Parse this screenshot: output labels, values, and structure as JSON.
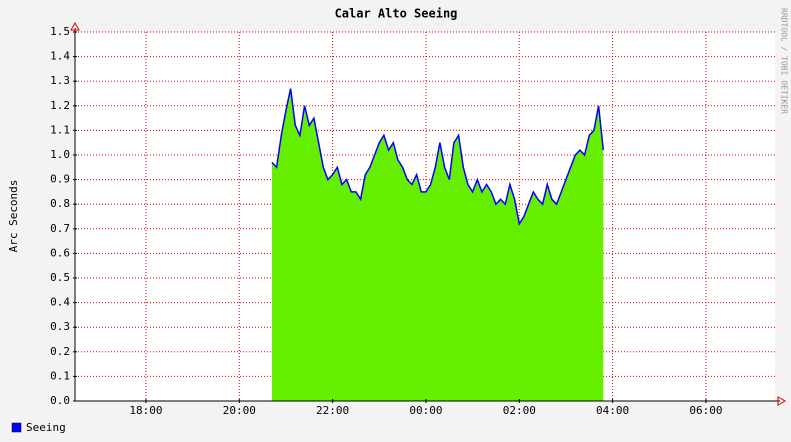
{
  "chart_data": {
    "type": "area",
    "title": "Calar Alto Seeing",
    "y_label": "Arc Seconds",
    "watermark": "RRDTOOL / TOBI OETIKER",
    "series": [
      {
        "name": "Seeing",
        "color": "#0000ff",
        "fill": "#66ee00",
        "x": [
          20.7,
          20.8,
          20.9,
          21.0,
          21.1,
          21.2,
          21.3,
          21.4,
          21.5,
          21.6,
          21.7,
          21.8,
          21.9,
          22.0,
          22.1,
          22.2,
          22.3,
          22.4,
          22.5,
          22.6,
          22.7,
          22.8,
          22.9,
          23.0,
          23.1,
          23.2,
          23.3,
          23.4,
          23.5,
          23.6,
          23.7,
          23.8,
          23.9,
          24.0,
          24.1,
          24.2,
          24.3,
          24.4,
          24.5,
          24.6,
          24.7,
          24.8,
          24.9,
          25.0,
          25.1,
          25.2,
          25.3,
          25.4,
          25.5,
          25.6,
          25.7,
          25.8,
          25.9,
          26.0,
          26.1,
          26.2,
          26.3,
          26.4,
          26.5,
          26.6,
          26.7,
          26.8,
          26.9,
          27.0,
          27.1,
          27.2,
          27.3,
          27.4,
          27.5,
          27.6,
          27.7,
          27.8
        ],
        "values": [
          0.97,
          0.95,
          1.08,
          1.18,
          1.27,
          1.12,
          1.08,
          1.2,
          1.12,
          1.15,
          1.05,
          0.95,
          0.9,
          0.92,
          0.95,
          0.88,
          0.9,
          0.85,
          0.85,
          0.82,
          0.92,
          0.95,
          1.0,
          1.05,
          1.08,
          1.02,
          1.05,
          0.98,
          0.95,
          0.9,
          0.88,
          0.92,
          0.85,
          0.85,
          0.88,
          0.95,
          1.05,
          0.95,
          0.9,
          1.05,
          1.08,
          0.95,
          0.88,
          0.85,
          0.9,
          0.85,
          0.88,
          0.85,
          0.8,
          0.82,
          0.8,
          0.88,
          0.82,
          0.72,
          0.75,
          0.8,
          0.85,
          0.82,
          0.8,
          0.88,
          0.82,
          0.8,
          0.85,
          0.9,
          0.95,
          1.0,
          1.02,
          1.0,
          1.08,
          1.1,
          1.2,
          1.02
        ]
      }
    ],
    "xlim": [
      16.48,
      31.48
    ],
    "xticks": [
      {
        "value": 18,
        "label": "18:00"
      },
      {
        "value": 20,
        "label": "20:00"
      },
      {
        "value": 22,
        "label": "22:00"
      },
      {
        "value": 24,
        "label": "00:00"
      },
      {
        "value": 26,
        "label": "02:00"
      },
      {
        "value": 28,
        "label": "04:00"
      },
      {
        "value": 30,
        "label": "06:00"
      }
    ],
    "ylim": [
      0,
      1.5
    ],
    "yticks": [
      {
        "value": 0,
        "label": "0.0"
      },
      0.1,
      0.2,
      0.3,
      0.4,
      0.5,
      0.6,
      0.7,
      0.8,
      0.9,
      {
        "value": 1,
        "label": "1.0"
      },
      1.1,
      1.2,
      1.3,
      1.4,
      1.5
    ],
    "grid": true,
    "grid_color": "#dd0000"
  }
}
